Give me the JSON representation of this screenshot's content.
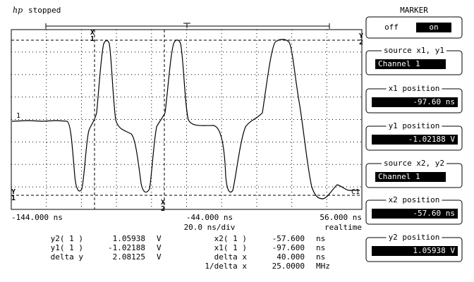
{
  "header": {
    "logo": "hp",
    "status": "stopped"
  },
  "panel": {
    "title": "MARKER",
    "toggle": {
      "off": "off",
      "on": "on"
    },
    "fields": [
      {
        "label": "source x1, y1",
        "value": "Channel 1"
      },
      {
        "label": "x1 position",
        "value": "-97.60 ns"
      },
      {
        "label": "y1 position",
        "value": "-1.02188  V"
      },
      {
        "label": "source x2, y2",
        "value": "Channel 1"
      },
      {
        "label": "x2 position",
        "value": "-57.60 ns"
      },
      {
        "label": "y2 position",
        "value": "1.05938  V"
      }
    ]
  },
  "display": {
    "markers": [
      {
        "letter": "X",
        "index": "1"
      },
      {
        "letter": "X",
        "index": "2"
      },
      {
        "letter": "Y",
        "index": "1"
      },
      {
        "letter": "Y",
        "index": "2"
      }
    ],
    "channel_label": "1",
    "channel_tag": "C1",
    "x_labels": [
      "-144.000 ns",
      "-44.000 ns",
      "56.000 ns"
    ],
    "timebase": "20.0 ns/div",
    "mode": "realtime"
  },
  "measurements": [
    [
      {
        "label": "y2( 1 )",
        "value": "1.05938",
        "unit": "V"
      },
      {
        "label": "y1( 1 )",
        "value": "-1.02188",
        "unit": "V"
      },
      {
        "label": "delta y",
        "value": "2.08125",
        "unit": "V"
      }
    ],
    [
      {
        "label": "x2( 1 )",
        "value": "-57.600",
        "unit": "ns"
      },
      {
        "label": "x1( 1 )",
        "value": "-97.600",
        "unit": "ns"
      },
      {
        "label": "delta x",
        "value": "40.000",
        "unit": "ns"
      },
      {
        "label": "1/delta x",
        "value": "25.0000",
        "unit": "MHz"
      }
    ]
  ]
}
